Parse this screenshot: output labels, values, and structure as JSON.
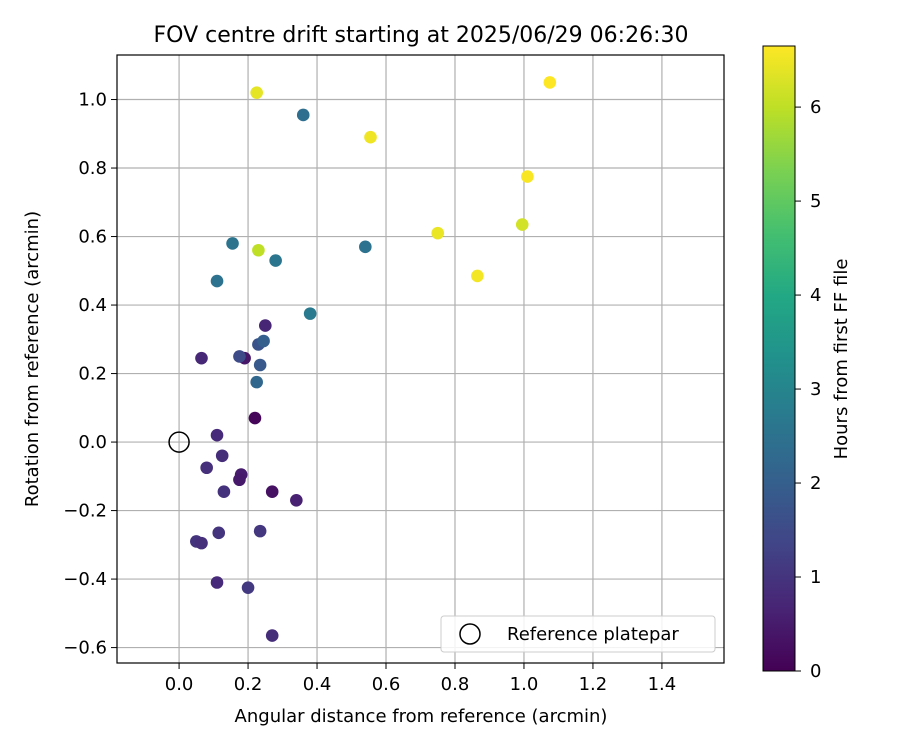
{
  "chart_data": {
    "type": "scatter",
    "title": "FOV centre drift starting at 2025/06/29 06:26:30",
    "xlabel": "Angular distance from reference (arcmin)",
    "ylabel": "Rotation from reference (arcmin)",
    "xlim": [
      -0.18,
      1.58
    ],
    "ylim": [
      -0.645,
      1.13
    ],
    "xticks": [
      0.0,
      0.2,
      0.4,
      0.6,
      0.8,
      1.0,
      1.2,
      1.4
    ],
    "xtick_labels": [
      "0.0",
      "0.2",
      "0.4",
      "0.6",
      "0.8",
      "1.0",
      "1.2",
      "1.4"
    ],
    "yticks": [
      -0.6,
      -0.4,
      -0.2,
      0.0,
      0.2,
      0.4,
      0.6,
      0.8,
      1.0
    ],
    "ytick_labels": [
      "−0.6",
      "−0.4",
      "−0.2",
      "0.0",
      "0.2",
      "0.4",
      "0.6",
      "0.8",
      "1.0"
    ],
    "grid": true,
    "legend": {
      "position": "lower-right",
      "entries": [
        "Reference platepar"
      ]
    },
    "reference_point": {
      "name": "Reference platepar",
      "x": 0.0,
      "y": 0.0,
      "marker": "open-circle"
    },
    "colorbar": {
      "label": "Hours from first FF file",
      "min": 0,
      "max": 6.65,
      "ticks": [
        0,
        1,
        2,
        3,
        4,
        5,
        6
      ],
      "tick_labels": [
        "0",
        "1",
        "2",
        "3",
        "4",
        "5",
        "6"
      ],
      "colormap": "viridis"
    },
    "points": [
      {
        "x": 0.22,
        "y": 0.07,
        "hours": 0.1
      },
      {
        "x": 0.27,
        "y": -0.145,
        "hours": 0.3
      },
      {
        "x": 0.34,
        "y": -0.17,
        "hours": 0.6
      },
      {
        "x": 0.18,
        "y": -0.095,
        "hours": 0.5
      },
      {
        "x": 0.175,
        "y": -0.11,
        "hours": 0.45
      },
      {
        "x": 0.19,
        "y": 0.245,
        "hours": 0.4
      },
      {
        "x": 0.25,
        "y": 0.34,
        "hours": 0.7
      },
      {
        "x": 0.065,
        "y": 0.245,
        "hours": 0.75
      },
      {
        "x": 0.11,
        "y": 0.02,
        "hours": 0.8
      },
      {
        "x": 0.125,
        "y": -0.04,
        "hours": 0.85
      },
      {
        "x": 0.08,
        "y": -0.075,
        "hours": 0.9
      },
      {
        "x": 0.13,
        "y": -0.145,
        "hours": 0.95
      },
      {
        "x": 0.115,
        "y": -0.265,
        "hours": 1.0
      },
      {
        "x": 0.235,
        "y": -0.26,
        "hours": 1.05
      },
      {
        "x": 0.05,
        "y": -0.29,
        "hours": 1.0
      },
      {
        "x": 0.065,
        "y": -0.295,
        "hours": 0.9
      },
      {
        "x": 0.11,
        "y": -0.41,
        "hours": 0.8
      },
      {
        "x": 0.2,
        "y": -0.425,
        "hours": 1.1
      },
      {
        "x": 0.27,
        "y": -0.565,
        "hours": 0.85
      },
      {
        "x": 0.175,
        "y": 0.25,
        "hours": 1.5
      },
      {
        "x": 0.23,
        "y": 0.285,
        "hours": 1.7
      },
      {
        "x": 0.245,
        "y": 0.295,
        "hours": 2.0
      },
      {
        "x": 0.235,
        "y": 0.225,
        "hours": 1.85
      },
      {
        "x": 0.225,
        "y": 0.175,
        "hours": 2.2
      },
      {
        "x": 0.11,
        "y": 0.47,
        "hours": 2.5
      },
      {
        "x": 0.155,
        "y": 0.58,
        "hours": 2.55
      },
      {
        "x": 0.28,
        "y": 0.53,
        "hours": 2.6
      },
      {
        "x": 0.38,
        "y": 0.375,
        "hours": 2.7
      },
      {
        "x": 0.54,
        "y": 0.57,
        "hours": 2.5
      },
      {
        "x": 0.36,
        "y": 0.955,
        "hours": 2.4
      },
      {
        "x": 0.225,
        "y": 1.02,
        "hours": 6.4
      },
      {
        "x": 0.23,
        "y": 0.56,
        "hours": 6.0
      },
      {
        "x": 0.555,
        "y": 0.89,
        "hours": 6.5
      },
      {
        "x": 0.75,
        "y": 0.61,
        "hours": 6.45
      },
      {
        "x": 0.865,
        "y": 0.485,
        "hours": 6.55
      },
      {
        "x": 0.995,
        "y": 0.635,
        "hours": 6.2
      },
      {
        "x": 1.01,
        "y": 0.775,
        "hours": 6.6
      },
      {
        "x": 1.075,
        "y": 1.05,
        "hours": 6.65
      }
    ]
  }
}
